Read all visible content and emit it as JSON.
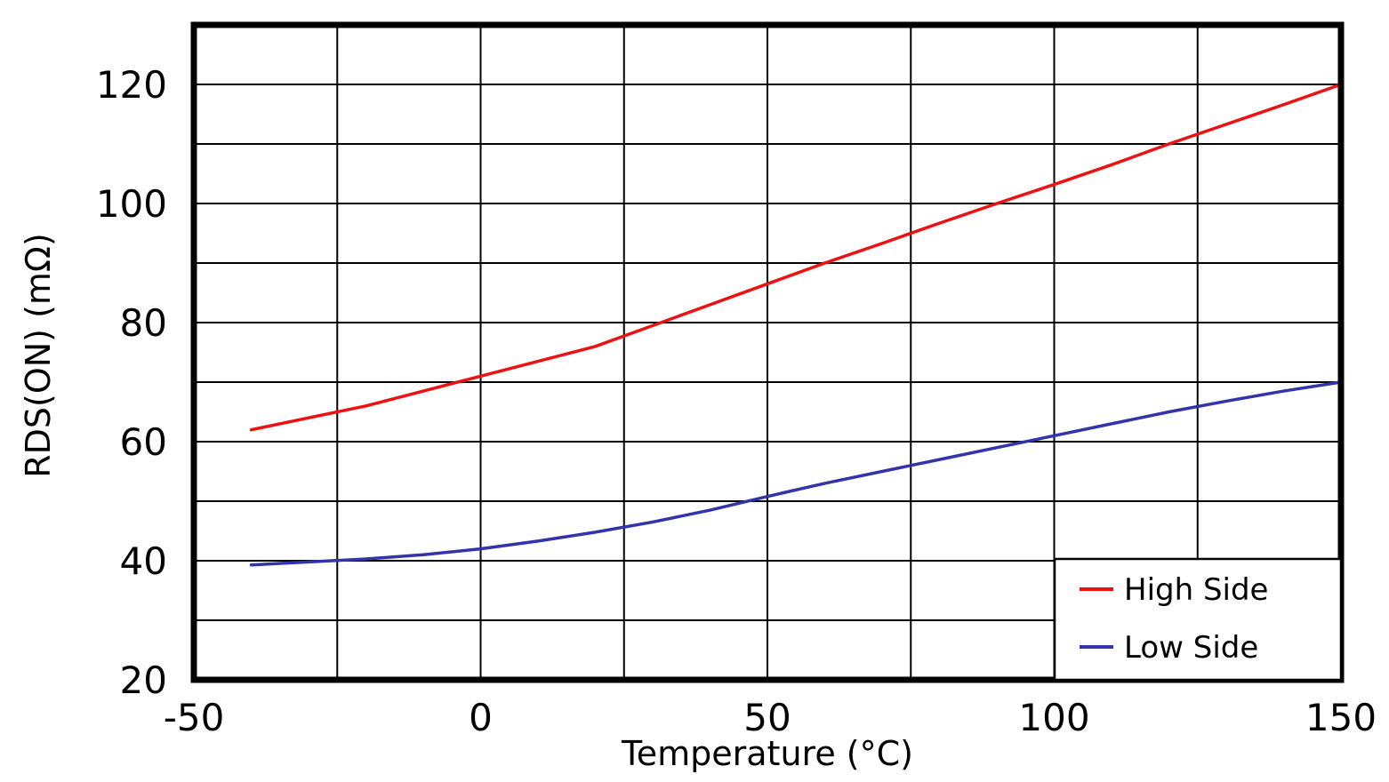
{
  "chart_data": {
    "type": "line",
    "title": "",
    "xlabel": "Temperature (°C)",
    "ylabel": "RDS(ON)  (mΩ)",
    "xlim": [
      -50,
      150
    ],
    "ylim": [
      20,
      130
    ],
    "x_ticks": [
      -50,
      0,
      50,
      100,
      150
    ],
    "y_ticks": [
      20,
      40,
      60,
      80,
      100,
      120
    ],
    "x_grid_step": 25,
    "y_grid_step": 10,
    "grid": true,
    "legend_position": "bottom-right",
    "background_color": "#ffffff",
    "grid_color": "#000000",
    "x": [
      -40,
      -30,
      -20,
      -10,
      0,
      10,
      20,
      30,
      40,
      50,
      60,
      70,
      80,
      90,
      100,
      110,
      120,
      130,
      140,
      150
    ],
    "series": [
      {
        "name": "High Side",
        "color": "#ee1111",
        "values": [
          62,
          64,
          66,
          68.5,
          71,
          73.5,
          76,
          79.5,
          83,
          86.5,
          90,
          93.3,
          96.7,
          100,
          103.2,
          106.5,
          110,
          113.3,
          116.6,
          120
        ]
      },
      {
        "name": "Low Side",
        "color": "#3333aa",
        "values": [
          39.3,
          39.8,
          40.3,
          41,
          42,
          43.3,
          44.8,
          46.5,
          48.5,
          50.8,
          53,
          55,
          57,
          59,
          61,
          63,
          65,
          66.8,
          68.5,
          70
        ]
      }
    ]
  }
}
